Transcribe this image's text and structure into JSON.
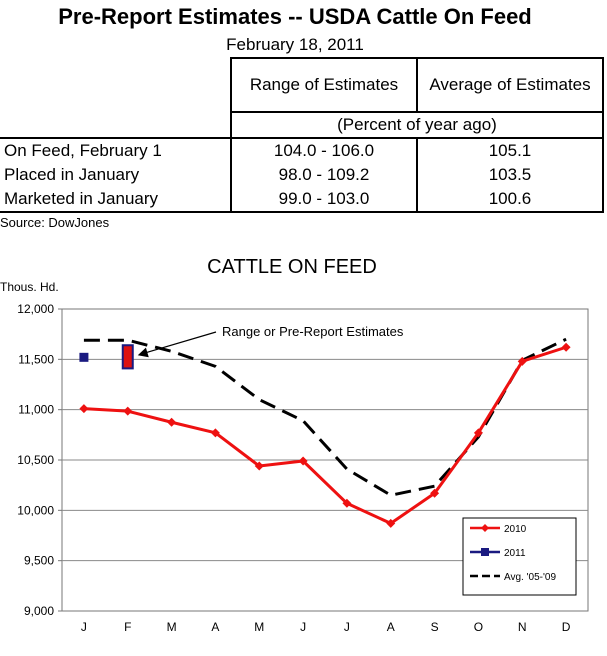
{
  "report": {
    "title": "Pre-Report Estimates -- USDA Cattle On Feed",
    "date": "February 18, 2011",
    "columns": [
      "Range of Estimates",
      "Average of Estimates"
    ],
    "units_note": "(Percent of year ago)",
    "rows": [
      {
        "label": "On Feed, February 1",
        "range": "104.0 - 106.0",
        "average": "105.1"
      },
      {
        "label": "Placed in January",
        "range": "98.0 - 109.2",
        "average": "103.5"
      },
      {
        "label": "Marketed in January",
        "range": "99.0 - 103.0",
        "average": "100.6"
      }
    ],
    "source": "Source:  DowJones"
  },
  "chart_data": {
    "type": "line",
    "title": "CATTLE ON FEED",
    "ylabel": "Thous. Hd.",
    "xlabel": "",
    "categories": [
      "J",
      "F",
      "M",
      "A",
      "M",
      "J",
      "J",
      "A",
      "S",
      "O",
      "N",
      "D"
    ],
    "ylim": [
      9000,
      12000
    ],
    "yticks": [
      9000,
      9500,
      10000,
      10500,
      11000,
      11500,
      12000
    ],
    "ytick_labels": [
      "9,000",
      "9,500",
      "10,000",
      "10,500",
      "11,000",
      "11,500",
      "12,000"
    ],
    "grid": true,
    "legend_position": "bottom-right",
    "series": [
      {
        "name": "2010",
        "color": "#ee1111",
        "marker": "diamond",
        "style": "solid",
        "values": [
          11010,
          10985,
          10875,
          10770,
          10440,
          10490,
          10070,
          9870,
          10170,
          10770,
          11480,
          11620
        ]
      },
      {
        "name": "2011",
        "color": "#1a1a80",
        "marker": "square",
        "style": "solid",
        "values": [
          11520,
          null,
          null,
          null,
          null,
          null,
          null,
          null,
          null,
          null,
          null,
          null
        ]
      },
      {
        "name": "Avg. '05-'09",
        "color": "#000000",
        "marker": "none",
        "style": "dashed",
        "values": [
          11690,
          11690,
          11580,
          11430,
          11100,
          10890,
          10410,
          10150,
          10240,
          10730,
          11490,
          11700
        ]
      }
    ],
    "estimate_range": {
      "category": "F",
      "low": 11410,
      "high": 11640,
      "fill": "#dd1111",
      "edge": "#1a1a80"
    },
    "annotation": "Range or Pre-Report Estimates"
  }
}
